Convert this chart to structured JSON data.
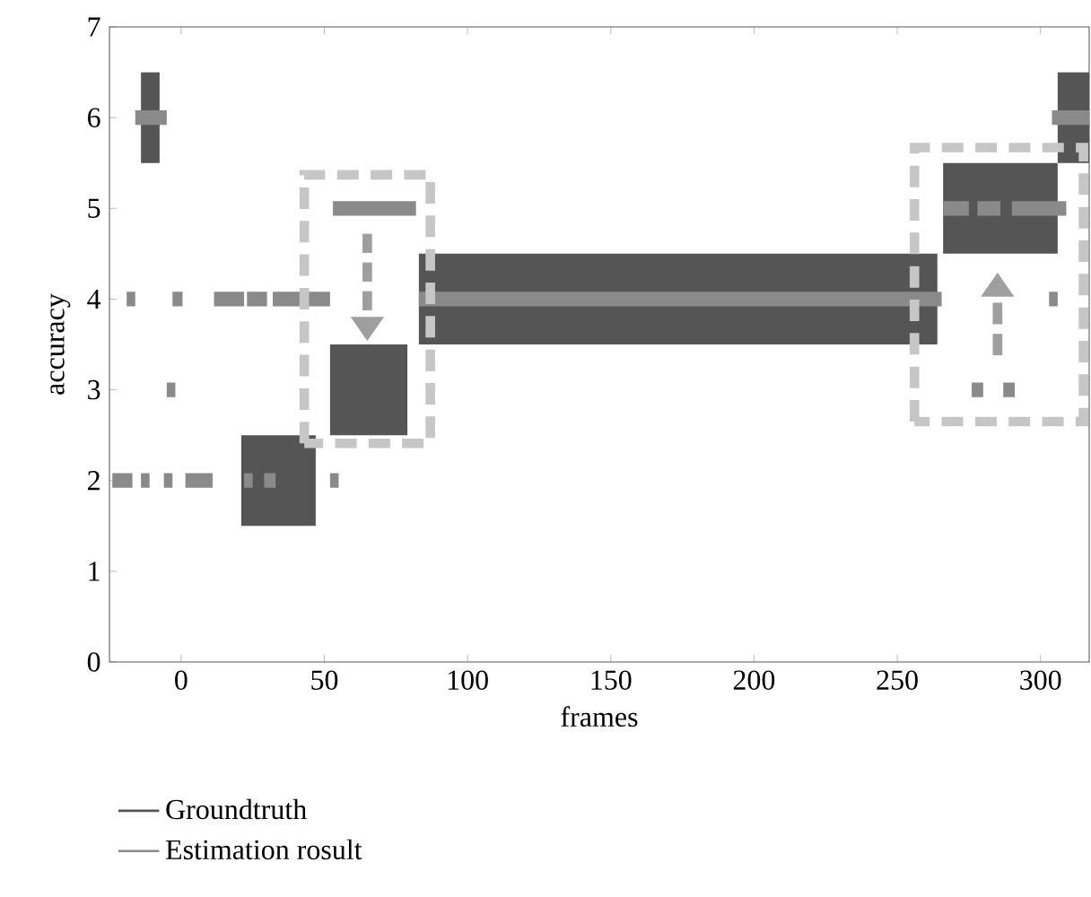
{
  "chart_data": {
    "type": "line",
    "xlabel": "frames",
    "ylabel": "accuracy",
    "xlim": [
      -25,
      317
    ],
    "xticks": [
      0,
      50,
      100,
      150,
      200,
      250,
      300
    ],
    "ylim": [
      0,
      7
    ],
    "yticks": [
      0,
      1,
      2,
      3,
      4,
      5,
      6,
      7
    ],
    "grid": false,
    "legend": "bottom",
    "marker": "none",
    "line_style": "solid",
    "series": [
      {
        "name": "Groundtruth",
        "color": "#555555",
        "x": [
          -14,
          -7.5,
          null,
          21,
          47,
          null,
          52,
          79,
          null,
          83,
          264,
          null,
          266,
          306,
          null,
          306,
          317
        ],
        "values": [
          6,
          6,
          null,
          2,
          2,
          null,
          3,
          3,
          null,
          4,
          4,
          null,
          5,
          5,
          null,
          6,
          6
        ]
      },
      {
        "name": "Estimation rosult",
        "color": "#8a8a8a",
        "x": [
          -24,
          -17,
          null,
          -16,
          -5,
          null,
          -3,
          0.5,
          null,
          1.5,
          11,
          null,
          11.5,
          22,
          null,
          23,
          30,
          null,
          32,
          52,
          null,
          53,
          82,
          null,
          83,
          265.5,
          null,
          266,
          275,
          null,
          278,
          286,
          null,
          290,
          309
        ],
        "values": [
          2,
          2,
          null,
          6,
          6,
          null,
          4,
          4,
          null,
          2,
          2,
          null,
          4,
          4,
          null,
          4,
          4,
          null,
          4,
          4,
          null,
          5,
          5,
          null,
          4,
          4,
          null,
          5,
          5,
          null,
          5,
          5,
          null,
          5,
          5
        ]
      },
      {
        "color": "#8a8a8a",
        "x": [
          -19,
          -16,
          null,
          -14,
          -11,
          null,
          -5,
          -2,
          null,
          22,
          25,
          null,
          29,
          33,
          null,
          52,
          55,
          null,
          276,
          280,
          null,
          287,
          291,
          null,
          304,
          317
        ],
        "values": [
          4,
          4,
          null,
          2,
          2,
          null,
          3,
          3,
          null,
          2,
          2,
          null,
          2,
          2,
          null,
          2,
          2,
          null,
          3,
          3,
          null,
          3,
          3,
          null,
          6,
          6
        ]
      },
      {
        "color": "#8a8a8a",
        "x": [
          -6,
          -3,
          null,
          303,
          306
        ],
        "values": [
          2,
          2,
          null,
          4,
          4
        ]
      }
    ]
  }
}
